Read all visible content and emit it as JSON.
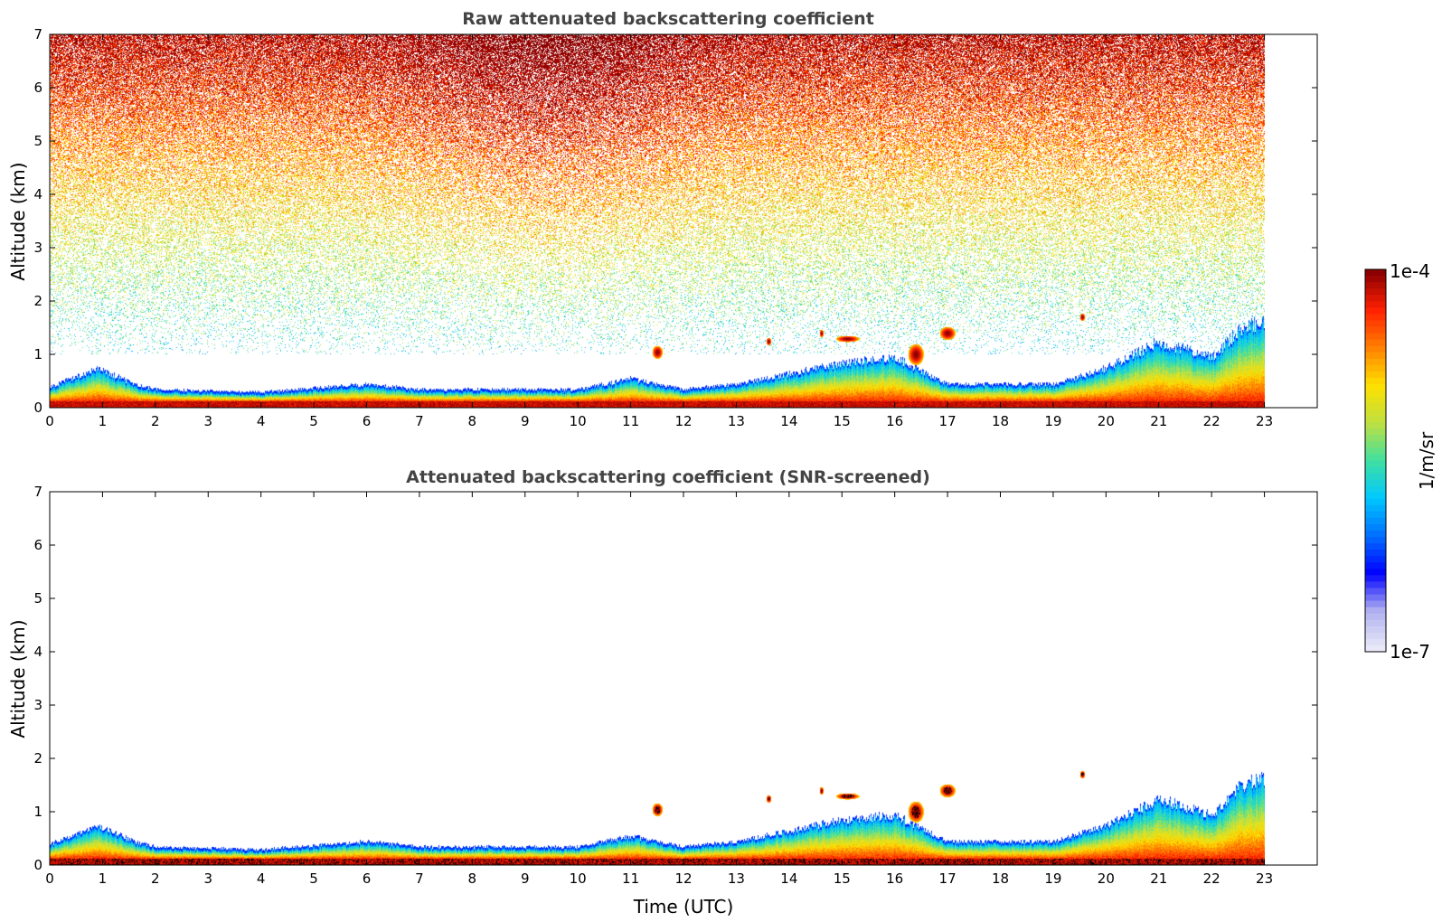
{
  "chart_data": [
    {
      "type": "heatmap",
      "title": "Raw attenuated backscattering coefficient",
      "xlabel": "",
      "ylabel": "Altitude (km)",
      "xlim": [
        0,
        24
      ],
      "ylim": [
        0,
        7
      ],
      "xticks": [
        "0",
        "1",
        "2",
        "3",
        "4",
        "5",
        "6",
        "7",
        "8",
        "9",
        "10",
        "11",
        "12",
        "13",
        "14",
        "15",
        "16",
        "17",
        "18",
        "19",
        "20",
        "21",
        "22",
        "23"
      ],
      "yticks": [
        "0",
        "1",
        "2",
        "3",
        "4",
        "5",
        "6",
        "7"
      ],
      "data_end_time": 23,
      "noisy": true
    },
    {
      "type": "heatmap",
      "title": "Attenuated backscattering coefficient (SNR-screened)",
      "xlabel": "Time (UTC)",
      "ylabel": "Altitude (km)",
      "xlim": [
        0,
        24
      ],
      "ylim": [
        0,
        7
      ],
      "xticks": [
        "0",
        "1",
        "2",
        "3",
        "4",
        "5",
        "6",
        "7",
        "8",
        "9",
        "10",
        "11",
        "12",
        "13",
        "14",
        "15",
        "16",
        "17",
        "18",
        "19",
        "20",
        "21",
        "22",
        "23"
      ],
      "yticks": [
        "0",
        "1",
        "2",
        "3",
        "4",
        "5",
        "6",
        "7"
      ],
      "data_end_time": 23,
      "noisy": false
    }
  ],
  "colorbar": {
    "label": "1/m/sr",
    "max_label": "1e-4",
    "min_label": "1e-7",
    "colormap": [
      "#e8e8f8",
      "#b0b0f0",
      "#0000ff",
      "#0070ff",
      "#00c8ff",
      "#40e0a0",
      "#c0e040",
      "#ffe000",
      "#ff8000",
      "#ff2000",
      "#8b0000"
    ]
  },
  "features": {
    "boundary_layer_top_km": [
      [
        0,
        0.35
      ],
      [
        0.9,
        0.7
      ],
      [
        1.6,
        0.4
      ],
      [
        2,
        0.3
      ],
      [
        4,
        0.25
      ],
      [
        6,
        0.4
      ],
      [
        7,
        0.3
      ],
      [
        10,
        0.3
      ],
      [
        11,
        0.5
      ],
      [
        12,
        0.3
      ],
      [
        13,
        0.4
      ],
      [
        14,
        0.6
      ],
      [
        15,
        0.8
      ],
      [
        16,
        0.9
      ],
      [
        17,
        0.4
      ],
      [
        19,
        0.4
      ],
      [
        20,
        0.7
      ],
      [
        21,
        1.2
      ],
      [
        22,
        0.9
      ],
      [
        22.5,
        1.4
      ],
      [
        23,
        1.6
      ]
    ],
    "cloud_patches": [
      {
        "t": 11.5,
        "z": 1.05,
        "w": 0.2,
        "h": 0.25
      },
      {
        "t": 15.1,
        "z": 1.3,
        "w": 0.45,
        "h": 0.12
      },
      {
        "t": 16.4,
        "z": 1.0,
        "w": 0.3,
        "h": 0.4
      },
      {
        "t": 17.0,
        "z": 1.4,
        "w": 0.3,
        "h": 0.25
      },
      {
        "t": 19.55,
        "z": 1.7,
        "w": 0.1,
        "h": 0.15
      },
      {
        "t": 13.6,
        "z": 1.25,
        "w": 0.1,
        "h": 0.15
      },
      {
        "t": 14.6,
        "z": 1.4,
        "w": 0.08,
        "h": 0.15
      }
    ]
  }
}
